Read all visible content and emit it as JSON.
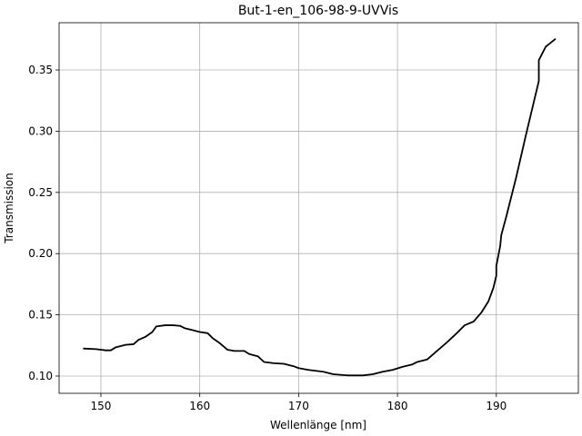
{
  "chart_data": {
    "type": "line",
    "title": "But-1-en_106-98-9-UVVis",
    "x_label": "Wellenlänge [nm]",
    "y_label": "Transmission",
    "x": [
      148.2,
      149.5,
      150.5,
      151,
      151.5,
      152.5,
      153.3,
      153.8,
      154.5,
      155.2,
      155.6,
      156.5,
      157.3,
      158,
      158.5,
      159.3,
      160,
      160.8,
      161.3,
      162,
      162.8,
      163.5,
      164.5,
      165,
      165.9,
      166.5,
      167.5,
      168.5,
      169.5,
      170,
      171,
      172.5,
      173.5,
      175,
      176.5,
      177.5,
      178.5,
      179.5,
      180.5,
      181.5,
      182,
      183,
      184,
      185,
      186,
      186.8,
      187.7,
      188.5,
      189.2,
      189.7,
      190,
      190,
      190.4,
      190.5,
      191,
      192,
      193,
      194.3,
      194.3,
      195,
      196
    ],
    "series": [
      {
        "name": "Transmission",
        "color": "#000000",
        "values": [
          0.1225,
          0.122,
          0.121,
          0.121,
          0.1235,
          0.1255,
          0.126,
          0.1295,
          0.132,
          0.136,
          0.1405,
          0.1415,
          0.1415,
          0.141,
          0.139,
          0.1375,
          0.136,
          0.135,
          0.131,
          0.127,
          0.1215,
          0.1205,
          0.1205,
          0.118,
          0.116,
          0.1115,
          0.1105,
          0.11,
          0.108,
          0.1065,
          0.105,
          0.1035,
          0.1015,
          0.1005,
          0.1005,
          0.1015,
          0.1035,
          0.105,
          0.1075,
          0.1095,
          0.1115,
          0.1135,
          0.1205,
          0.1275,
          0.135,
          0.1415,
          0.1445,
          0.152,
          0.161,
          0.172,
          0.182,
          0.19,
          0.2065,
          0.215,
          0.23,
          0.262,
          0.297,
          0.341,
          0.358,
          0.369,
          0.3755
        ]
      }
    ],
    "xlim": [
      145.77,
      198.3
    ],
    "ylim": [
      0.0859,
      0.3886
    ],
    "xticks": [
      150,
      160,
      170,
      180,
      190
    ],
    "yticks": [
      {
        "value": 0.1,
        "label": "0.10"
      },
      0.15,
      {
        "value": 0.2,
        "label": "0.20"
      },
      0.25,
      {
        "value": 0.3,
        "label": "0.30"
      },
      0.35
    ],
    "grid": true
  }
}
